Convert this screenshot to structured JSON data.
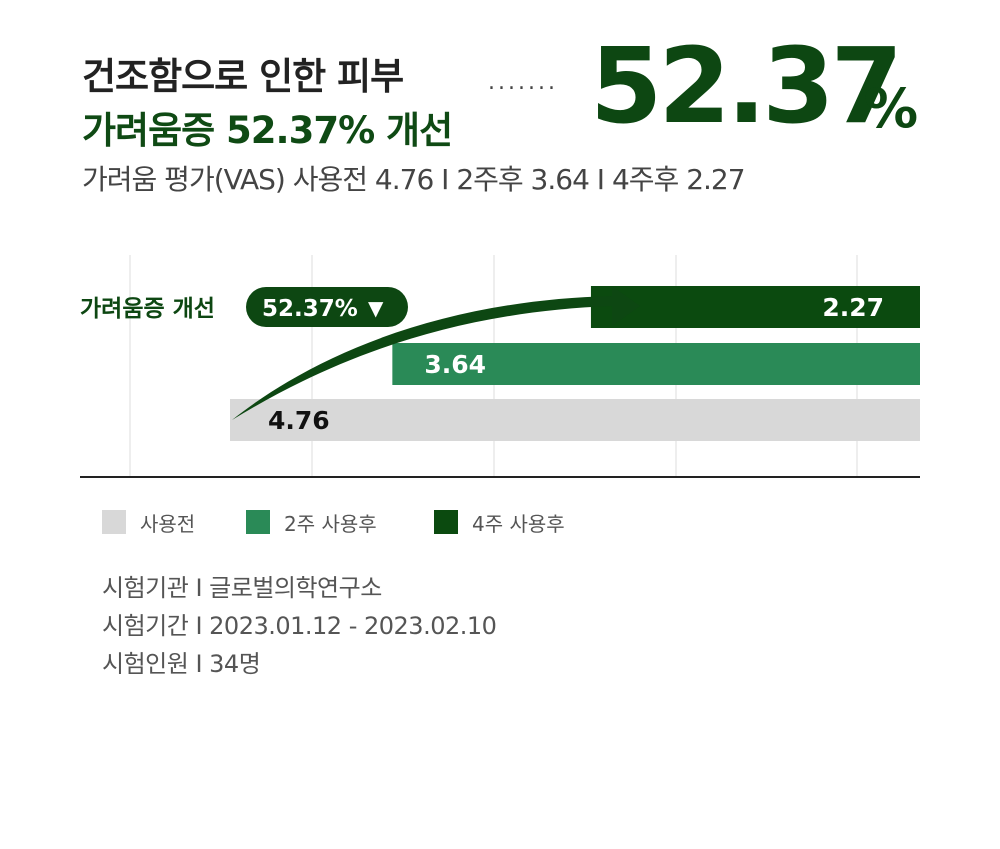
{
  "header": {
    "title_line1": "건조함으로 인한 피부",
    "title_line2": "가려움증 52.37% 개선",
    "dots": ".......",
    "big_value": "52.37",
    "big_unit": "%",
    "subtitle": "가려움 평가(VAS) 사용전 4.76 I 2주후 3.64 I 4주후 2.27"
  },
  "chart_data": {
    "type": "bar",
    "orientation": "horizontal",
    "categories": [
      "4주 사용후",
      "2주 사용후",
      "사용전"
    ],
    "values": [
      2.27,
      3.64,
      4.76
    ],
    "value_labels": [
      "2.27",
      "3.64",
      "4.76"
    ],
    "colors": [
      "#0b4a0f",
      "#2a8a57",
      "#d8d8d8"
    ],
    "label_colors": [
      "#ffffff",
      "#ffffff",
      "#111111"
    ],
    "improvement_label": "가려움증 개선",
    "improvement_badge": "52.37%",
    "improvement_arrow": "▼",
    "grid": true,
    "legend_position": "bottom-left",
    "xlim": [
      0,
      4.76
    ]
  },
  "legend": [
    {
      "label": "사용전",
      "color": "#d8d8d8"
    },
    {
      "label": "2주 사용후",
      "color": "#2a8a57"
    },
    {
      "label": "4주 사용후",
      "color": "#0b4a0f"
    }
  ],
  "info": {
    "line1": "시험기관 I 글로벌의학연구소",
    "line2": "시험기간 I 2023.01.12 - 2023.02.10",
    "line3": "시험인원 I 34명"
  },
  "colors": {
    "brand_dark": "#0d4712",
    "brand_mid": "#2a8a57",
    "baseline_gray": "#d8d8d8"
  }
}
